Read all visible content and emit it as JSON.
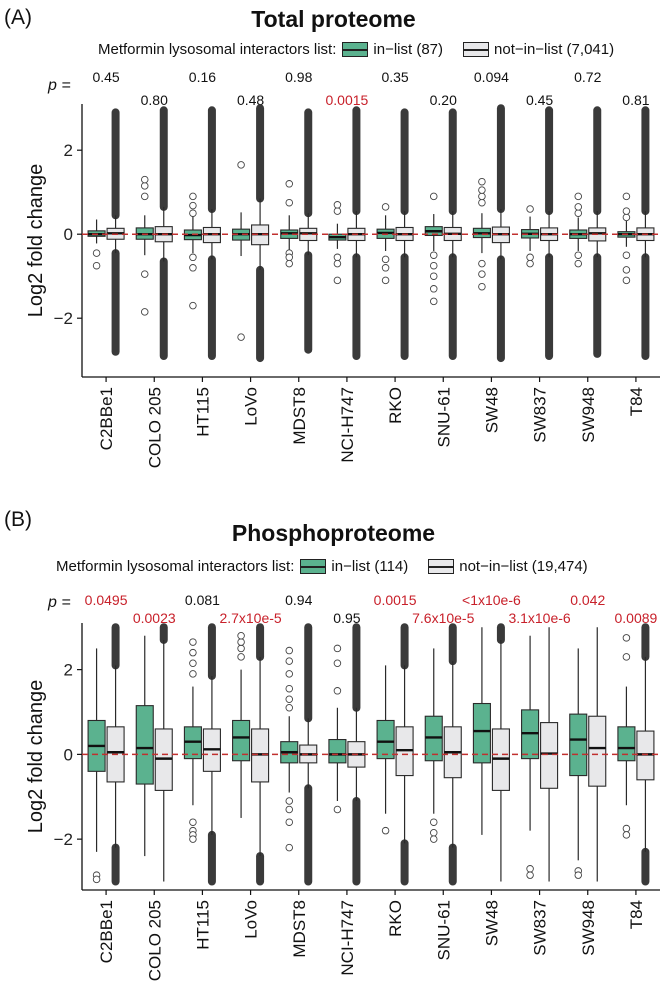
{
  "colors": {
    "in_list": "#5bb28f",
    "not_in_list": "#e8e8ea",
    "outline": "#2a2a2a",
    "reference_line": "#c0302f",
    "significant_p": "#c8202a",
    "nonsignificant_p": "#111111"
  },
  "p_prefix": "p =",
  "chart_data": [
    {
      "panel_label": "(A)",
      "title": "Total proteome",
      "type": "box",
      "legend_title": "Metformin lysosomal interactors list:",
      "legend": [
        {
          "label": "in−list (87)",
          "color": "#5bb28f"
        },
        {
          "label": "not−in−list (7,041)",
          "color": "#e8e8ea"
        }
      ],
      "ylabel": "Log2 fold change",
      "ylim": [
        -3.4,
        3.1
      ],
      "yticks": [
        -2,
        0,
        2
      ],
      "reference_line_y": 0,
      "categories": [
        "C2BBe1",
        "COLO 205",
        "HT115",
        "LoVo",
        "MDST8",
        "NCI-H747",
        "RKO",
        "SNU-61",
        "SW48",
        "SW837",
        "SW948",
        "T84"
      ],
      "p_values": [
        "0.45",
        "0.80",
        "0.16",
        "0.48",
        "0.98",
        "0.0015",
        "0.35",
        "0.20",
        "0.094",
        "0.45",
        "0.72",
        "0.81"
      ],
      "p_significant": [
        false,
        false,
        false,
        false,
        false,
        true,
        false,
        false,
        false,
        false,
        false,
        false
      ],
      "series": [
        {
          "name": "in−list (87)",
          "boxes": [
            {
              "q1": -0.05,
              "median": 0.0,
              "q3": 0.08,
              "wlo": -0.22,
              "whi": 0.35,
              "outliers": [
                -0.45,
                -0.75
              ]
            },
            {
              "q1": -0.12,
              "median": 0.0,
              "q3": 0.15,
              "wlo": -0.5,
              "whi": 0.45,
              "outliers": [
                0.9,
                1.15,
                1.3,
                -0.95,
                -1.85
              ]
            },
            {
              "q1": -0.13,
              "median": -0.02,
              "q3": 0.1,
              "wlo": -0.45,
              "whi": 0.42,
              "outliers": [
                0.5,
                0.68,
                0.9,
                -0.55,
                -0.8,
                -1.7
              ]
            },
            {
              "q1": -0.14,
              "median": 0.0,
              "q3": 0.12,
              "wlo": -0.52,
              "whi": 0.52,
              "outliers": [
                1.65,
                -2.45
              ]
            },
            {
              "q1": -0.1,
              "median": 0.02,
              "q3": 0.1,
              "wlo": -0.4,
              "whi": 0.45,
              "outliers": [
                -0.45,
                -0.55,
                -0.7,
                0.75,
                1.2
              ]
            },
            {
              "q1": -0.14,
              "median": -0.07,
              "q3": 0.0,
              "wlo": -0.35,
              "whi": 0.25,
              "outliers": [
                0.55,
                0.7,
                -0.55,
                -0.7,
                -1.1
              ]
            },
            {
              "q1": -0.1,
              "median": 0.03,
              "q3": 0.12,
              "wlo": -0.4,
              "whi": 0.45,
              "outliers": [
                0.65,
                -0.6,
                -0.8,
                -1.1
              ]
            },
            {
              "q1": -0.03,
              "median": 0.07,
              "q3": 0.18,
              "wlo": -0.4,
              "whi": 0.48,
              "outliers": [
                0.9,
                -0.5,
                -0.75,
                -1.0,
                -1.3,
                -1.6
              ]
            },
            {
              "q1": -0.08,
              "median": 0.02,
              "q3": 0.14,
              "wlo": -0.45,
              "whi": 0.5,
              "outliers": [
                0.75,
                0.9,
                1.05,
                1.25,
                -0.7,
                -0.95,
                -1.25
              ]
            },
            {
              "q1": -0.09,
              "median": 0.01,
              "q3": 0.11,
              "wlo": -0.4,
              "whi": 0.42,
              "outliers": [
                0.6,
                -0.55,
                -0.7
              ]
            },
            {
              "q1": -0.1,
              "median": 0.0,
              "q3": 0.1,
              "wlo": -0.4,
              "whi": 0.4,
              "outliers": [
                0.5,
                0.65,
                0.9,
                -0.5,
                -0.7
              ]
            },
            {
              "q1": -0.07,
              "median": 0.0,
              "q3": 0.06,
              "wlo": -0.3,
              "whi": 0.35,
              "outliers": [
                0.4,
                0.55,
                0.9,
                -0.5,
                -0.85,
                -1.1
              ]
            }
          ]
        },
        {
          "name": "not−in−list (7,041)",
          "boxes": [
            {
              "q1": -0.12,
              "median": 0.02,
              "q3": 0.14,
              "wlo": -0.45,
              "whi": 0.45,
              "dense_lo": -2.8,
              "dense_hi": 2.9
            },
            {
              "q1": -0.18,
              "median": 0.0,
              "q3": 0.18,
              "wlo": -0.65,
              "whi": 0.65,
              "dense_lo": -2.9,
              "dense_hi": 2.95
            },
            {
              "q1": -0.2,
              "median": 0.0,
              "q3": 0.16,
              "wlo": -0.6,
              "whi": 0.6,
              "dense_lo": -2.9,
              "dense_hi": 2.95
            },
            {
              "q1": -0.25,
              "median": 0.0,
              "q3": 0.22,
              "wlo": -0.85,
              "whi": 0.85,
              "dense_lo": -2.95,
              "dense_hi": 3.0
            },
            {
              "q1": -0.15,
              "median": 0.02,
              "q3": 0.14,
              "wlo": -0.5,
              "whi": 0.5,
              "dense_lo": -2.75,
              "dense_hi": 2.9
            },
            {
              "q1": -0.15,
              "median": 0.0,
              "q3": 0.14,
              "wlo": -0.55,
              "whi": 0.55,
              "dense_lo": -2.9,
              "dense_hi": 2.95
            },
            {
              "q1": -0.15,
              "median": 0.0,
              "q3": 0.16,
              "wlo": -0.55,
              "whi": 0.55,
              "dense_lo": -2.9,
              "dense_hi": 2.9
            },
            {
              "q1": -0.15,
              "median": 0.01,
              "q3": 0.16,
              "wlo": -0.55,
              "whi": 0.55,
              "dense_lo": -2.9,
              "dense_hi": 2.9
            },
            {
              "q1": -0.2,
              "median": 0.0,
              "q3": 0.17,
              "wlo": -0.6,
              "whi": 0.6,
              "dense_lo": -2.95,
              "dense_hi": 3.0
            },
            {
              "q1": -0.15,
              "median": 0.0,
              "q3": 0.15,
              "wlo": -0.55,
              "whi": 0.55,
              "dense_lo": -2.9,
              "dense_hi": 2.95
            },
            {
              "q1": -0.16,
              "median": 0.02,
              "q3": 0.15,
              "wlo": -0.55,
              "whi": 0.55,
              "dense_lo": -2.85,
              "dense_hi": 2.95
            },
            {
              "q1": -0.15,
              "median": 0.0,
              "q3": 0.15,
              "wlo": -0.55,
              "whi": 0.55,
              "dense_lo": -2.9,
              "dense_hi": 2.95
            }
          ]
        }
      ]
    },
    {
      "panel_label": "(B)",
      "title": "Phosphoproteome",
      "type": "box",
      "legend_title": "Metformin lysosomal interactors list:",
      "legend": [
        {
          "label": "in−list (114)",
          "color": "#5bb28f"
        },
        {
          "label": "not−in−list (19,474)",
          "color": "#e8e8ea"
        }
      ],
      "ylabel": "Log2 fold change",
      "ylim": [
        -3.2,
        3.1
      ],
      "yticks": [
        -2,
        0,
        2
      ],
      "reference_line_y": 0,
      "categories": [
        "C2BBe1",
        "COLO 205",
        "HT115",
        "LoVo",
        "MDST8",
        "NCI-H747",
        "RKO",
        "SNU-61",
        "SW48",
        "SW837",
        "SW948",
        "T84"
      ],
      "p_values": [
        "0.0495",
        "0.0023",
        "0.081",
        "2.7x10e-5",
        "0.94",
        "0.95",
        "0.0015",
        "7.6x10e-5",
        "<1x10e-6",
        "3.1x10e-6",
        "0.042",
        "0.0089"
      ],
      "p_significant": [
        true,
        true,
        false,
        true,
        false,
        false,
        true,
        true,
        true,
        true,
        true,
        true
      ],
      "series": [
        {
          "name": "in−list (114)",
          "boxes": [
            {
              "q1": -0.4,
              "median": 0.2,
              "q3": 0.8,
              "wlo": -2.3,
              "whi": 2.5,
              "outliers": [
                -2.85,
                -2.95
              ]
            },
            {
              "q1": -0.7,
              "median": 0.15,
              "q3": 1.15,
              "wlo": -2.4,
              "whi": 2.8,
              "outliers": []
            },
            {
              "q1": -0.1,
              "median": 0.3,
              "q3": 0.65,
              "wlo": -1.2,
              "whi": 1.6,
              "outliers": [
                1.9,
                2.15,
                2.4,
                2.65,
                -1.6,
                -1.8,
                -1.9,
                -2.0
              ]
            },
            {
              "q1": -0.15,
              "median": 0.4,
              "q3": 0.8,
              "wlo": -1.5,
              "whi": 2.0,
              "outliers": [
                2.3,
                2.5,
                2.65,
                2.8
              ]
            },
            {
              "q1": -0.2,
              "median": 0.05,
              "q3": 0.3,
              "wlo": -0.9,
              "whi": 0.9,
              "outliers": [
                1.1,
                1.3,
                1.55,
                1.9,
                2.2,
                2.45,
                -1.1,
                -1.3,
                -1.6,
                -2.2
              ]
            },
            {
              "q1": -0.2,
              "median": 0.0,
              "q3": 0.35,
              "wlo": -1.1,
              "whi": 1.1,
              "outliers": [
                1.5,
                2.15,
                2.5,
                -1.3
              ]
            },
            {
              "q1": -0.1,
              "median": 0.3,
              "q3": 0.8,
              "wlo": -1.4,
              "whi": 2.1,
              "outliers": [
                -1.8
              ]
            },
            {
              "q1": -0.15,
              "median": 0.4,
              "q3": 0.9,
              "wlo": -1.4,
              "whi": 2.5,
              "outliers": [
                -1.6,
                -1.85,
                -2.0
              ]
            },
            {
              "q1": -0.2,
              "median": 0.55,
              "q3": 1.2,
              "wlo": -1.9,
              "whi": 3.0,
              "outliers": []
            },
            {
              "q1": -0.1,
              "median": 0.5,
              "q3": 1.05,
              "wlo": -1.8,
              "whi": 2.8,
              "outliers": [
                -2.7,
                -2.85
              ]
            },
            {
              "q1": -0.5,
              "median": 0.35,
              "q3": 0.95,
              "wlo": -2.5,
              "whi": 2.5,
              "outliers": [
                -2.75,
                -2.85
              ]
            },
            {
              "q1": -0.15,
              "median": 0.15,
              "q3": 0.65,
              "wlo": -1.2,
              "whi": 1.6,
              "outliers": [
                2.3,
                2.75,
                -1.75,
                -1.9
              ]
            }
          ]
        },
        {
          "name": "not−in−list (19,474)",
          "boxes": [
            {
              "q1": -0.65,
              "median": 0.05,
              "q3": 0.65,
              "wlo": -2.2,
              "whi": 2.1,
              "dense_lo": -3.0,
              "dense_hi": 3.0
            },
            {
              "q1": -0.85,
              "median": -0.1,
              "q3": 0.6,
              "wlo": -3.0,
              "whi": 2.7,
              "dense_lo": -3.0,
              "dense_hi": 3.0
            },
            {
              "q1": -0.4,
              "median": 0.12,
              "q3": 0.6,
              "wlo": -1.9,
              "whi": 1.85,
              "dense_lo": -3.0,
              "dense_hi": 3.0
            },
            {
              "q1": -0.65,
              "median": 0.0,
              "q3": 0.6,
              "wlo": -2.4,
              "whi": 2.3,
              "dense_lo": -3.0,
              "dense_hi": 3.0
            },
            {
              "q1": -0.2,
              "median": 0.0,
              "q3": 0.22,
              "wlo": -0.8,
              "whi": 0.85,
              "dense_lo": -3.0,
              "dense_hi": 3.0
            },
            {
              "q1": -0.3,
              "median": 0.0,
              "q3": 0.3,
              "wlo": -1.1,
              "whi": 1.1,
              "dense_lo": -3.0,
              "dense_hi": 3.0
            },
            {
              "q1": -0.5,
              "median": 0.1,
              "q3": 0.65,
              "wlo": -2.1,
              "whi": 2.1,
              "dense_lo": -3.0,
              "dense_hi": 3.0
            },
            {
              "q1": -0.55,
              "median": 0.05,
              "q3": 0.65,
              "wlo": -2.2,
              "whi": 2.2,
              "dense_lo": -3.0,
              "dense_hi": 3.0
            },
            {
              "q1": -0.85,
              "median": -0.1,
              "q3": 0.6,
              "wlo": -3.0,
              "whi": 2.7,
              "dense_lo": -3.0,
              "dense_hi": 3.0
            },
            {
              "q1": -0.8,
              "median": 0.02,
              "q3": 0.75,
              "wlo": -3.0,
              "whi": 3.0,
              "dense_lo": -3.0,
              "dense_hi": 3.0
            },
            {
              "q1": -0.75,
              "median": 0.15,
              "q3": 0.9,
              "wlo": -3.0,
              "whi": 3.0,
              "dense_lo": -3.0,
              "dense_hi": 3.0
            },
            {
              "q1": -0.6,
              "median": 0.0,
              "q3": 0.55,
              "wlo": -2.3,
              "whi": 2.3,
              "dense_lo": -3.0,
              "dense_hi": 3.0
            }
          ]
        }
      ]
    }
  ]
}
